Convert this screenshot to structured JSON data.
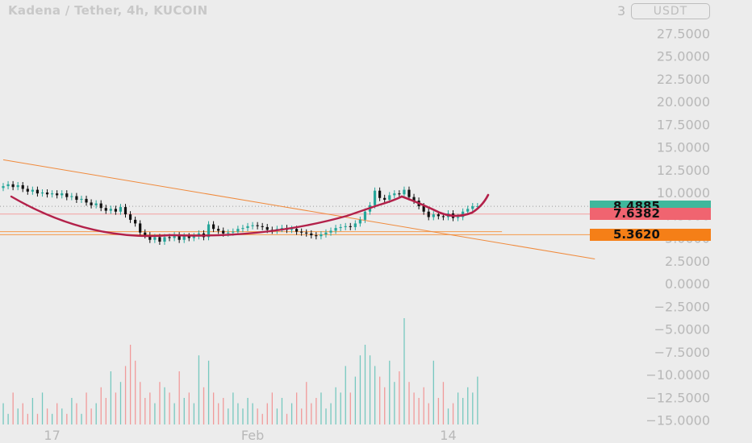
{
  "header": {
    "title": "Kadena / Tether, 4h, KUCOIN",
    "currency": "USDT",
    "top_tick": "3"
  },
  "colors": {
    "background": "#ececec",
    "up_candle": "#26a69a",
    "down_candle": "#111111",
    "up_volume": "#76c8bf",
    "down_volume": "#f19a9a",
    "curve": "#b3214a",
    "trendline": "#f08a3c",
    "support_line": "#f59a4a",
    "last_price_line": "#f4a0a0",
    "green_tag": "#26a69a",
    "red_tag": "#f06470",
    "orange_tag": "#f57f17"
  },
  "price_tags": [
    {
      "id": "last",
      "label": "8.4885",
      "value": 8.4885,
      "bg": "#3fb89c",
      "fg": "#111111"
    },
    {
      "id": "red",
      "label": "7.6382",
      "value": 7.6382,
      "bg": "#f06470",
      "fg": "#111111"
    },
    {
      "id": "support",
      "label": "5.3620",
      "value": 5.362,
      "bg": "#f57f17",
      "fg": "#111111"
    }
  ],
  "chart_data": {
    "type": "candlestick",
    "title": "Kadena / Tether, 4h, KUCOIN",
    "y_axis": {
      "unit": "USDT",
      "ticks": [
        27.5,
        25,
        22.5,
        20,
        17.5,
        15,
        12.5,
        10,
        7.5,
        5,
        2.5,
        0,
        -2.5,
        -5,
        -7.5,
        -10,
        -12.5,
        -15
      ],
      "tick_labels": [
        "27.5000",
        "25.0000",
        "22.5000",
        "20.0000",
        "17.5000",
        "15.0000",
        "12.5000",
        "10.0000",
        "7.5000",
        "5.0000",
        "2.5000",
        "0.0000",
        "−2.5000",
        "−5.0000",
        "−7.5000",
        "−10.0000",
        "−12.5000",
        "−15.0000"
      ],
      "range": [
        -15.3,
        30.5
      ]
    },
    "x_axis": {
      "labels": [
        {
          "text": "17",
          "bar": 10
        },
        {
          "text": "Feb",
          "bar": 51
        },
        {
          "text": "14",
          "bar": 91
        }
      ],
      "bar_count": 98
    },
    "closes": [
      10.7,
      10.9,
      10.6,
      10.8,
      10.4,
      10.1,
      10.3,
      9.9,
      10.0,
      9.8,
      9.9,
      9.7,
      9.9,
      9.5,
      9.6,
      9.2,
      9.3,
      8.9,
      8.6,
      8.8,
      8.3,
      8.0,
      8.2,
      7.9,
      8.4,
      7.6,
      7.0,
      6.6,
      5.6,
      5.3,
      4.8,
      5.1,
      4.6,
      5.1,
      5.0,
      5.3,
      4.8,
      5.2,
      5.0,
      5.2,
      5.5,
      5.1,
      6.5,
      6.0,
      5.8,
      5.5,
      5.6,
      5.7,
      6.0,
      6.1,
      6.3,
      6.4,
      6.3,
      6.2,
      5.9,
      5.8,
      6.0,
      6.1,
      5.9,
      6.0,
      5.7,
      5.6,
      5.5,
      5.3,
      5.2,
      5.4,
      5.6,
      5.8,
      6.1,
      6.2,
      6.3,
      6.2,
      6.6,
      7.0,
      7.9,
      8.6,
      10.2,
      9.4,
      9.2,
      9.7,
      9.9,
      9.8,
      10.3,
      9.5,
      9.1,
      8.5,
      7.9,
      7.3,
      7.6,
      7.4,
      7.3,
      7.7,
      7.2,
      7.3,
      7.9,
      8.2,
      8.5,
      8.5
    ],
    "volume_relative": [
      0.2,
      0.1,
      0.3,
      0.15,
      0.2,
      0.1,
      0.25,
      0.1,
      0.3,
      0.15,
      0.1,
      0.2,
      0.15,
      0.1,
      0.25,
      0.2,
      0.1,
      0.3,
      0.15,
      0.2,
      0.35,
      0.25,
      0.5,
      0.3,
      0.4,
      0.55,
      0.75,
      0.6,
      0.4,
      0.25,
      0.3,
      0.2,
      0.4,
      0.35,
      0.3,
      0.2,
      0.5,
      0.25,
      0.3,
      0.2,
      0.65,
      0.35,
      0.6,
      0.3,
      0.2,
      0.25,
      0.15,
      0.3,
      0.2,
      0.15,
      0.25,
      0.2,
      0.15,
      0.1,
      0.2,
      0.3,
      0.15,
      0.25,
      0.1,
      0.2,
      0.3,
      0.15,
      0.4,
      0.2,
      0.25,
      0.3,
      0.15,
      0.2,
      0.35,
      0.3,
      0.55,
      0.3,
      0.45,
      0.65,
      0.75,
      0.65,
      0.55,
      0.45,
      0.35,
      0.6,
      0.4,
      0.5,
      1.0,
      0.4,
      0.3,
      0.25,
      0.35,
      0.2,
      0.6,
      0.25,
      0.4,
      0.15,
      0.2,
      0.3,
      0.25,
      0.35,
      0.3,
      0.45
    ],
    "annotations": {
      "cup_curve": "rounded-bottom curve under price from bar 0 to bar 99",
      "trendline": {
        "start": [
          0,
          13.6
        ],
        "end": [
          121,
          2.7
        ]
      },
      "horizontal_lines": [
        {
          "value": 8.4885,
          "style": "dotted"
        },
        {
          "value": 7.6382,
          "style": "solid"
        },
        {
          "value": 5.7,
          "style": "solid",
          "end_bar": 102
        },
        {
          "value": 5.362,
          "style": "solid"
        }
      ]
    }
  }
}
